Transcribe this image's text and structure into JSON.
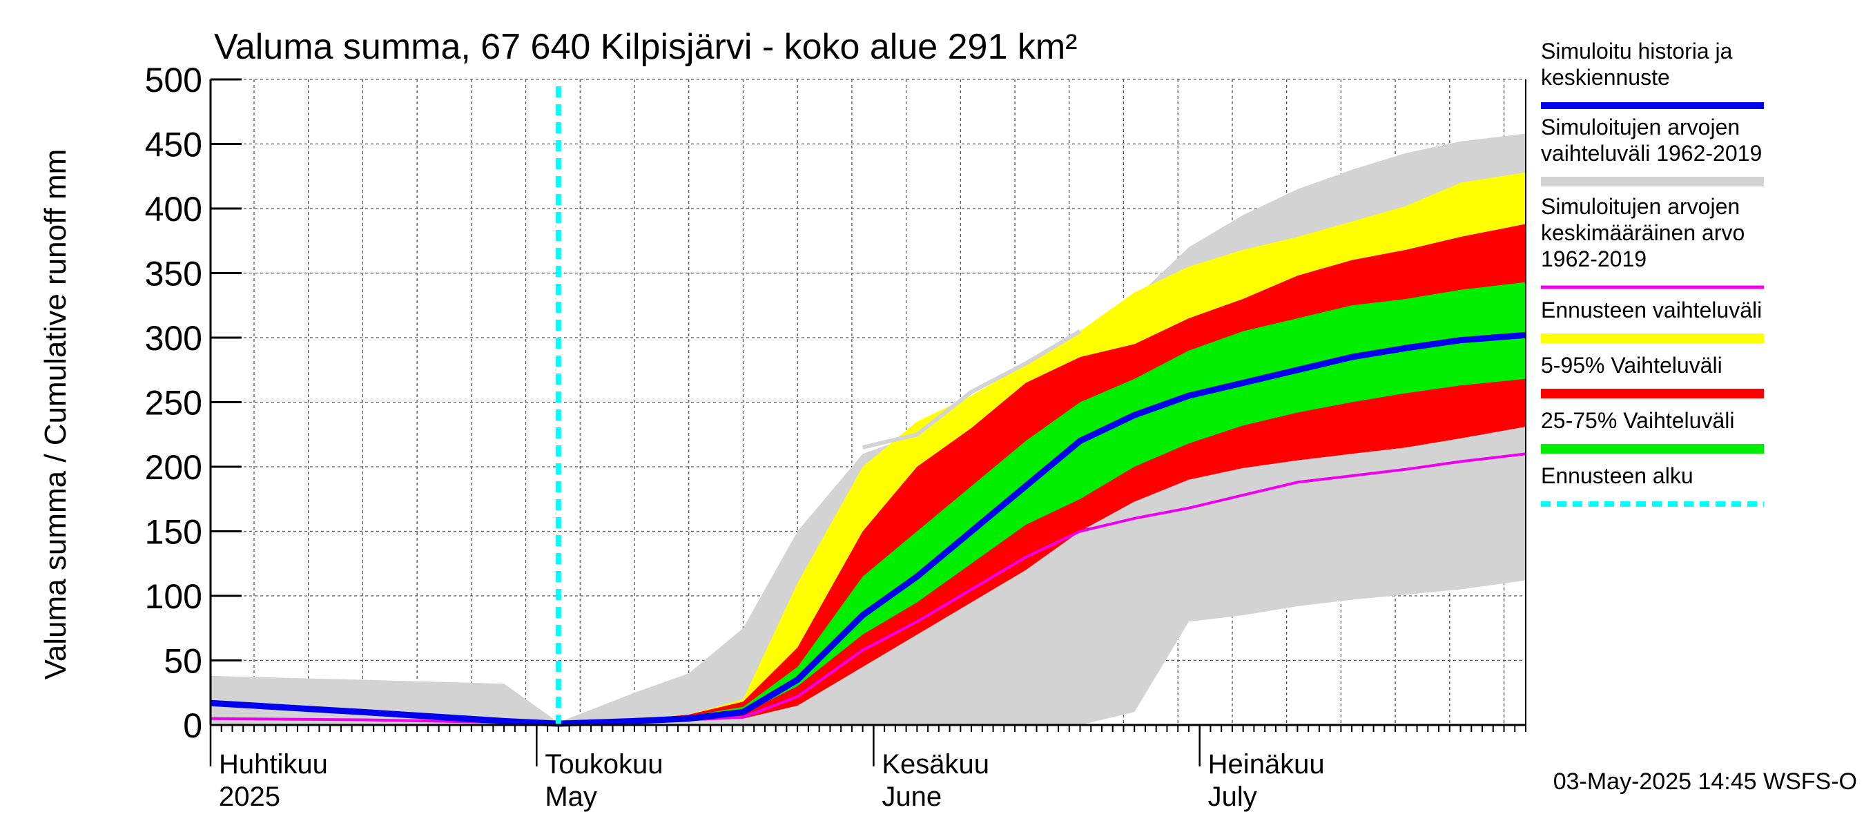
{
  "chart_data": {
    "type": "area",
    "title": "Valuma summa, 67 640 Kilpisjärvi - koko alue 291 km²",
    "ylabel": "Valuma summa / Cumulative runoff    mm",
    "ylim": [
      0,
      500
    ],
    "y_ticks": [
      "0",
      "50",
      "100",
      "150",
      "200",
      "250",
      "300",
      "350",
      "400",
      "450",
      "500"
    ],
    "x_range": [
      "2025-04-01",
      "2025-07-31"
    ],
    "month_labels": [
      {
        "fi": "Huhtikuu",
        "en": "2025",
        "date": "2025-04-01"
      },
      {
        "fi": "Toukokuu",
        "en": "May",
        "date": "2025-05-01"
      },
      {
        "fi": "Kesäkuu",
        "en": "June",
        "date": "2025-06-01"
      },
      {
        "fi": "Heinäkuu",
        "en": "July",
        "date": "2025-07-01"
      }
    ],
    "forecast_start": "2025-05-03",
    "timestamp": "03-May-2025 14:45 WSFS-O",
    "legend": [
      {
        "label": "Simuloitu historia ja keskiennuste",
        "color": "#0000ee",
        "style": "line"
      },
      {
        "label": "Simuloitujen arvojen vaihteluväli 1962-2019",
        "color": "#d3d3d3",
        "style": "line"
      },
      {
        "label": "Simuloitujen arvojen keskimääräinen arvo 1962-2019",
        "color": "#ee00ee",
        "style": "thin"
      },
      {
        "label": "Ennusteen vaihteluväli",
        "color": "#ffff00",
        "style": "line"
      },
      {
        "label": "5-95% Vaihteluväli",
        "color": "#ff0000",
        "style": "line"
      },
      {
        "label": "25-75% Vaihteluväli",
        "color": "#00ee00",
        "style": "line"
      },
      {
        "label": "Ennusteen alku",
        "color": "#00ffff",
        "style": "dash"
      }
    ],
    "x": [
      "2025-04-01",
      "2025-04-15",
      "2025-04-28",
      "2025-05-03",
      "2025-05-10",
      "2025-05-15",
      "2025-05-20",
      "2025-05-25",
      "2025-05-31",
      "2025-06-05",
      "2025-06-10",
      "2025-06-15",
      "2025-06-20",
      "2025-06-25",
      "2025-06-30",
      "2025-07-05",
      "2025-07-10",
      "2025-07-15",
      "2025-07-20",
      "2025-07-25",
      "2025-07-31"
    ],
    "series": [
      {
        "name": "Simuloitujen arvojen vaihteluväli 1962-2019",
        "color": "#d3d3d3",
        "kind": "band",
        "low": [
          0,
          0,
          0,
          0,
          0,
          0,
          0,
          0,
          0,
          0,
          0,
          0,
          0,
          10,
          80,
          85,
          92,
          97,
          101,
          105,
          112
        ],
        "high": [
          38,
          35,
          32,
          2,
          25,
          40,
          75,
          150,
          210,
          225,
          240,
          270,
          290,
          330,
          370,
          395,
          415,
          430,
          443,
          452,
          458
        ]
      },
      {
        "name": "Ennusteen vaihteluväli",
        "color": "#ffff00",
        "kind": "band",
        "low": [
          null,
          null,
          null,
          0,
          2,
          3,
          6,
          18,
          50,
          75,
          100,
          125,
          155,
          178,
          195,
          202,
          208,
          213,
          218,
          225,
          232
        ],
        "high": [
          null,
          null,
          null,
          0,
          4,
          8,
          20,
          110,
          200,
          235,
          255,
          280,
          305,
          335,
          355,
          368,
          378,
          390,
          402,
          420,
          428
        ]
      },
      {
        "name": "5-95% Vaihteluväli",
        "color": "#ff0000",
        "kind": "band",
        "low": [
          null,
          null,
          null,
          0,
          2,
          3,
          5,
          15,
          45,
          70,
          95,
          120,
          150,
          173,
          190,
          199,
          205,
          210,
          215,
          222,
          231
        ],
        "high": [
          null,
          null,
          null,
          0,
          4,
          8,
          18,
          60,
          150,
          200,
          230,
          265,
          285,
          295,
          315,
          330,
          348,
          360,
          368,
          378,
          388
        ]
      },
      {
        "name": "25-75% Vaihteluväli",
        "color": "#00ee00",
        "kind": "band",
        "low": [
          null,
          null,
          null,
          0,
          3,
          5,
          9,
          30,
          70,
          95,
          125,
          155,
          175,
          200,
          218,
          232,
          242,
          250,
          257,
          263,
          268
        ],
        "high": [
          null,
          null,
          null,
          0,
          4,
          7,
          14,
          45,
          115,
          150,
          185,
          220,
          250,
          268,
          290,
          305,
          315,
          325,
          330,
          337,
          343
        ]
      },
      {
        "name": "Simuloitujen arvojen keskimääräinen arvo 1962-2019",
        "color": "#ee00ee",
        "kind": "line",
        "values": [
          5,
          4,
          2,
          1,
          3,
          4,
          6,
          22,
          58,
          80,
          105,
          130,
          150,
          160,
          168,
          178,
          188,
          193,
          198,
          204,
          210
        ]
      },
      {
        "name": "Simuloitu historia ja keskiennuste",
        "color": "#0000ee",
        "kind": "line",
        "values": [
          17,
          10,
          3,
          1,
          3,
          5,
          10,
          35,
          85,
          115,
          150,
          185,
          220,
          240,
          255,
          265,
          275,
          285,
          292,
          298,
          302
        ]
      },
      {
        "name": "Simuloitujen arvojen vaihteluväli 1962-2019 (upper trace)",
        "color": "#d3d3d3",
        "kind": "line",
        "values": [
          null,
          null,
          null,
          null,
          null,
          null,
          null,
          null,
          215,
          225,
          258,
          280,
          305,
          null,
          null,
          null,
          null,
          null,
          null,
          null,
          null
        ]
      }
    ]
  }
}
